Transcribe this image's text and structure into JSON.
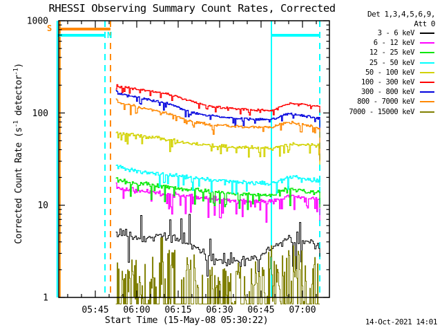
{
  "title": "RHESSI Observing Summary Count Rates, Corrected",
  "footer": {
    "timestamp": "14-Oct-2021 14:01"
  },
  "legend": {
    "det_line1": "Det 1,3,4,5,6,9,",
    "det_line2": "Att 0",
    "items": [
      {
        "label": "3 - 6 keV",
        "color": "#000000"
      },
      {
        "label": "6 - 12 keV",
        "color": "#ff00ff"
      },
      {
        "label": "12 - 25 keV",
        "color": "#00e800"
      },
      {
        "label": "25 - 50 keV",
        "color": "#00ffff"
      },
      {
        "label": "50 - 100 keV",
        "color": "#d2d200"
      },
      {
        "label": "100 - 300 keV",
        "color": "#ff0000"
      },
      {
        "label": "300 - 800 keV",
        "color": "#0000dd"
      },
      {
        "label": "800 - 7000 keV",
        "color": "#ff8800"
      },
      {
        "label": "7000 - 15000 keV",
        "color": "#7f7f00"
      }
    ]
  },
  "axes": {
    "x": {
      "label": "Start Time (15-May-08 05:30:22)",
      "t_min": 1.75,
      "t_max": 99.75,
      "major_ticks": [
        {
          "t": 15,
          "label": "05:45"
        },
        {
          "t": 30,
          "label": "06:00"
        },
        {
          "t": 45,
          "label": "06:15"
        },
        {
          "t": 60,
          "label": "06:30"
        },
        {
          "t": 75,
          "label": "06:45"
        },
        {
          "t": 90,
          "label": "07:00"
        }
      ],
      "minor_step_min": 5
    },
    "y": {
      "label_parts": [
        "Corrected Count Rate (s",
        "-1",
        " detector",
        "-1",
        ")"
      ],
      "scale": "log",
      "major_ticks": [
        {
          "v": 1,
          "label": "1"
        },
        {
          "v": 10,
          "label": "10"
        },
        {
          "v": 100,
          "label": "100"
        },
        {
          "v": 1000,
          "label": "1000"
        }
      ],
      "range": [
        1,
        1000
      ]
    }
  },
  "flags": {
    "s_label": "S",
    "n_label": "N",
    "bars": [
      {
        "name": "saa-bar",
        "color": "#ff8800",
        "t0": 2.2,
        "t1": 20.5,
        "y": 40
      },
      {
        "name": "night-bar-left",
        "color": "#00ffff",
        "t0": 1.2,
        "t1": 18.5,
        "y": 49
      },
      {
        "name": "night-bar-right",
        "color": "#00ffff",
        "t0": 78.75,
        "t1": 96.25,
        "y": 49
      }
    ],
    "vlines": [
      {
        "name": "night-start-line",
        "color": "#00ffff",
        "t": 1.2,
        "style": "solid"
      },
      {
        "name": "saa-start-line",
        "color": "#ff8800",
        "t": 2.2,
        "style": "solid"
      },
      {
        "name": "night-end-line",
        "color": "#00ffff",
        "t": 18.5,
        "style": "dashed"
      },
      {
        "name": "saa-end-line",
        "color": "#ff8800",
        "t": 20.5,
        "style": "dashed"
      },
      {
        "name": "night-start-2",
        "color": "#00ffff",
        "t": 78.75,
        "style": "solid"
      },
      {
        "name": "night-end-2",
        "color": "#00ffff",
        "t": 96.25,
        "style": "dashed"
      }
    ]
  },
  "chart_data": {
    "type": "line",
    "title": "RHESSI Observing Summary Count Rates, Corrected",
    "xlabel": "Start Time (15-May-08 05:30:22)",
    "ylabel": "Corrected Count Rate (s-1 detector-1)",
    "x_unit": "minutes after 05:30 UT, data span 05:52:30 - 07:06:15",
    "ylim": [
      1,
      1000
    ],
    "y_scale": "log",
    "grid": false,
    "legend_position": "top-right",
    "series": [
      {
        "name": "3 - 6 keV",
        "color": "#000000",
        "points": [
          [
            22.4,
            5.3
          ],
          [
            25,
            4.9
          ],
          [
            28,
            4.5
          ],
          [
            31,
            4.3
          ],
          [
            34,
            4.4
          ],
          [
            37,
            4.6
          ],
          [
            40,
            4.6
          ],
          [
            43,
            4.5
          ],
          [
            46,
            4.3
          ],
          [
            49,
            3.8
          ],
          [
            52,
            3.3
          ],
          [
            55,
            2.9
          ],
          [
            58,
            2.6
          ],
          [
            62,
            2.45
          ],
          [
            66,
            2.4
          ],
          [
            70,
            2.5
          ],
          [
            73,
            2.7
          ],
          [
            76,
            3.1
          ],
          [
            78,
            3.5
          ],
          [
            80,
            3.8
          ],
          [
            83,
            4.1
          ],
          [
            86,
            4.3
          ],
          [
            89,
            4.2
          ],
          [
            92,
            4.1
          ],
          [
            94,
            4.0
          ],
          [
            96.25,
            3.2
          ]
        ],
        "noise": {
          "sigma": 0.07,
          "down_p": 0.05,
          "down_amp": 0.28,
          "up_p": 0.04,
          "up_amp": 0.18,
          "up_window": [
            41,
            51.5,
            0.1,
            0.2
          ],
          "step": 2,
          "clip": 430,
          "width": 1
        }
      },
      {
        "name": "6 - 12 keV",
        "color": "#ff00ff",
        "points": [
          [
            22.4,
            16.3
          ],
          [
            23.2,
            15.4
          ],
          [
            26,
            14.9
          ],
          [
            30.5,
            14.4
          ],
          [
            35,
            13.8
          ],
          [
            40.5,
            13.2
          ],
          [
            45,
            12.7
          ],
          [
            50,
            12.3
          ],
          [
            55,
            11.9
          ],
          [
            60,
            11.6
          ],
          [
            65,
            11.3
          ],
          [
            70,
            11.1
          ],
          [
            74,
            11.0
          ],
          [
            78.75,
            10.9
          ],
          [
            80,
            11.2
          ],
          [
            82,
            11.9
          ],
          [
            84,
            12.4
          ],
          [
            86,
            12.5
          ],
          [
            88,
            12.3
          ],
          [
            90,
            12.0
          ],
          [
            92,
            11.8
          ],
          [
            94,
            11.7
          ],
          [
            96,
            11.6
          ],
          [
            96.25,
            9.8
          ]
        ],
        "noise": {
          "sigma": 0.035,
          "down_p": 0.12,
          "down_amp": 0.16,
          "step": 1.5,
          "width": 1.3
        }
      },
      {
        "name": "12 - 25 keV",
        "color": "#00e800",
        "points": [
          [
            22.4,
            19.6
          ],
          [
            23.2,
            18.6
          ],
          [
            26,
            17.9
          ],
          [
            30.5,
            17.2
          ],
          [
            35,
            16.5
          ],
          [
            40.5,
            15.8
          ],
          [
            45,
            15.2
          ],
          [
            50,
            14.7
          ],
          [
            55,
            14.2
          ],
          [
            60,
            13.8
          ],
          [
            65,
            13.5
          ],
          [
            70,
            13.2
          ],
          [
            74,
            13.0
          ],
          [
            78.75,
            12.9
          ],
          [
            80,
            13.3
          ],
          [
            82,
            14.3
          ],
          [
            84,
            14.9
          ],
          [
            86,
            15.0
          ],
          [
            88,
            14.7
          ],
          [
            90,
            14.3
          ],
          [
            92,
            14.1
          ],
          [
            94,
            13.9
          ],
          [
            96,
            13.8
          ],
          [
            96.25,
            9.5
          ]
        ],
        "noise": {
          "sigma": 0.03,
          "down_p": 0.12,
          "down_amp": 0.14,
          "step": 1.5,
          "width": 1.3
        }
      },
      {
        "name": "25 - 50 keV",
        "color": "#00ffff",
        "points": [
          [
            22.4,
            28.5
          ],
          [
            23.2,
            26
          ],
          [
            26,
            24.8
          ],
          [
            30.5,
            23.5
          ],
          [
            35,
            22.5
          ],
          [
            40.5,
            21.5
          ],
          [
            45,
            20.7
          ],
          [
            50,
            20
          ],
          [
            55,
            19.2
          ],
          [
            60,
            18.6
          ],
          [
            65,
            18.1
          ],
          [
            70,
            17.7
          ],
          [
            74,
            17.4
          ],
          [
            78.75,
            17.2
          ],
          [
            80,
            17.8
          ],
          [
            82,
            19
          ],
          [
            84,
            19.8
          ],
          [
            86,
            20.1
          ],
          [
            88,
            20
          ],
          [
            90,
            19.5
          ],
          [
            92,
            19
          ],
          [
            94,
            18.8
          ],
          [
            96,
            18.6
          ],
          [
            96.25,
            17
          ]
        ],
        "noise": {
          "sigma": 0.028,
          "down_p": 0.12,
          "down_amp": 0.11,
          "step": 1.5,
          "width": 1.3
        }
      },
      {
        "name": "50 - 100 keV",
        "color": "#d2d200",
        "points": [
          [
            22.4,
            64
          ],
          [
            23.2,
            61
          ],
          [
            26,
            59
          ],
          [
            30.5,
            57
          ],
          [
            35,
            55
          ],
          [
            40.5,
            52
          ],
          [
            45,
            49
          ],
          [
            49,
            47
          ],
          [
            52,
            46
          ],
          [
            56,
            45
          ],
          [
            60,
            44
          ],
          [
            64,
            43
          ],
          [
            68,
            42.5
          ],
          [
            72,
            42
          ],
          [
            76,
            41.5
          ],
          [
            78.75,
            41
          ],
          [
            80,
            42
          ],
          [
            82,
            44
          ],
          [
            84,
            46
          ],
          [
            86,
            46.5
          ],
          [
            88,
            46
          ],
          [
            90,
            45.5
          ],
          [
            92,
            45
          ],
          [
            94,
            44.5
          ],
          [
            96,
            44
          ],
          [
            96.25,
            28
          ]
        ],
        "noise": {
          "sigma": 0.024,
          "down_p": 0.12,
          "down_amp": 0.09,
          "step": 1.5,
          "width": 1.3
        }
      },
      {
        "name": "100 - 300 keV",
        "color": "#ff0000",
        "points": [
          [
            22.4,
            205
          ],
          [
            23.2,
            193
          ],
          [
            26,
            188
          ],
          [
            30.5,
            180
          ],
          [
            35,
            172
          ],
          [
            40.5,
            162
          ],
          [
            45,
            148
          ],
          [
            49,
            136
          ],
          [
            52,
            127
          ],
          [
            56,
            120
          ],
          [
            60,
            115
          ],
          [
            64,
            112
          ],
          [
            68,
            110
          ],
          [
            72,
            108
          ],
          [
            76,
            107
          ],
          [
            78.75,
            107
          ],
          [
            80,
            110
          ],
          [
            82,
            118
          ],
          [
            84,
            124
          ],
          [
            86,
            127
          ],
          [
            88,
            126
          ],
          [
            90,
            124
          ],
          [
            92,
            122
          ],
          [
            94,
            121
          ],
          [
            96,
            118
          ],
          [
            96.25,
            100
          ]
        ],
        "noise": {
          "sigma": 0.014,
          "down_p": 0.1,
          "down_amp": 0.05,
          "step": 1.5,
          "width": 1.3
        }
      },
      {
        "name": "300 - 800 keV",
        "color": "#0000dd",
        "points": [
          [
            22.4,
            175
          ],
          [
            23.2,
            163
          ],
          [
            26,
            155
          ],
          [
            30.5,
            147
          ],
          [
            35,
            138
          ],
          [
            40.5,
            128
          ],
          [
            45,
            115
          ],
          [
            49,
            104
          ],
          [
            52,
            98
          ],
          [
            56,
            94
          ],
          [
            60,
            91
          ],
          [
            64,
            89
          ],
          [
            68,
            87
          ],
          [
            72,
            86
          ],
          [
            76,
            85
          ],
          [
            78.75,
            85
          ],
          [
            80,
            87
          ],
          [
            82,
            92
          ],
          [
            84,
            96
          ],
          [
            86,
            97
          ],
          [
            88,
            95
          ],
          [
            90,
            93
          ],
          [
            92,
            91
          ],
          [
            94,
            89
          ],
          [
            96,
            87
          ],
          [
            96.25,
            62
          ]
        ],
        "noise": {
          "sigma": 0.016,
          "down_p": 0.1,
          "down_amp": 0.06,
          "step": 1.5,
          "width": 1.3
        }
      },
      {
        "name": "800 - 7000 keV",
        "color": "#ff8800",
        "points": [
          [
            22.4,
            142
          ],
          [
            23.2,
            130
          ],
          [
            26,
            124
          ],
          [
            30.5,
            116
          ],
          [
            35,
            108
          ],
          [
            40.5,
            100
          ],
          [
            45,
            90
          ],
          [
            49,
            82
          ],
          [
            52,
            78
          ],
          [
            56,
            75
          ],
          [
            60,
            73
          ],
          [
            64,
            72
          ],
          [
            68,
            71
          ],
          [
            72,
            70
          ],
          [
            76,
            70
          ],
          [
            78.75,
            70
          ],
          [
            80,
            72
          ],
          [
            82,
            76
          ],
          [
            84,
            79
          ],
          [
            86,
            79
          ],
          [
            88,
            77
          ],
          [
            90,
            75
          ],
          [
            92,
            73
          ],
          [
            94,
            71
          ],
          [
            96,
            69
          ],
          [
            96.25,
            31
          ]
        ],
        "noise": {
          "sigma": 0.018,
          "down_p": 0.12,
          "down_amp": 0.07,
          "step": 1.5,
          "width": 1.3
        }
      },
      {
        "name": "7000 - 15000 keV",
        "color": "#7f7f00",
        "points": [
          [
            22.4,
            1.35
          ],
          [
            26,
            1.3
          ],
          [
            30,
            1.3
          ],
          [
            34,
            1.3
          ],
          [
            36.5,
            1.4
          ],
          [
            37.5,
            2.2
          ],
          [
            40,
            2.3
          ],
          [
            44,
            2.25
          ],
          [
            48,
            2.1
          ],
          [
            50.5,
            1.9
          ],
          [
            51.5,
            1.25
          ],
          [
            55,
            1.25
          ],
          [
            59,
            1.3
          ],
          [
            63,
            1.3
          ],
          [
            67,
            1.3
          ],
          [
            71,
            1.3
          ],
          [
            75,
            1.3
          ],
          [
            76.5,
            1.9
          ],
          [
            78,
            2.0
          ],
          [
            82,
            2.0
          ],
          [
            86,
            1.95
          ],
          [
            90,
            1.85
          ],
          [
            93,
            1.75
          ],
          [
            96.25,
            1.1
          ]
        ],
        "noise": {
          "model": "comb",
          "up": 0.32,
          "down": 1.5,
          "step": 1,
          "clip": 439.5,
          "width": 1
        }
      }
    ],
    "annotations": {
      "saa_flag": "S (orange) bar: SAA passage from start until ~05:50",
      "night_flag": "N (cyan) bars: spacecraft night until ~05:48 and 06:48-07:06"
    }
  }
}
